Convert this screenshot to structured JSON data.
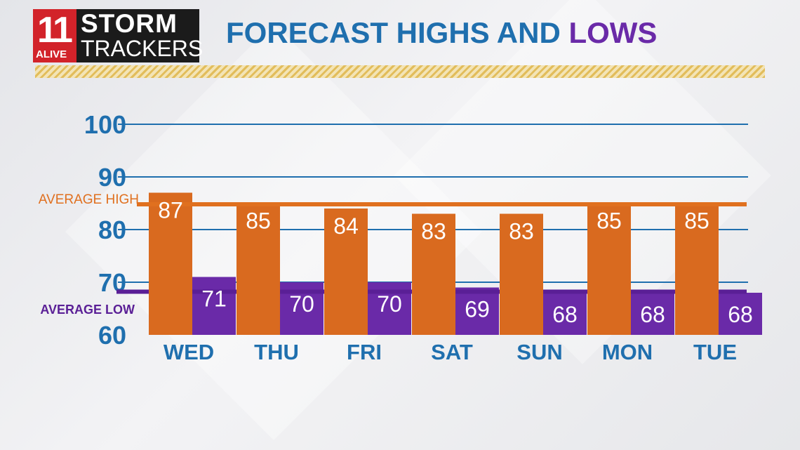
{
  "logo": {
    "number": "11",
    "station": "ALIVE",
    "line1": "STORM",
    "line2": "TRACKERS"
  },
  "title": {
    "part1": "FORECAST HIGHS AND",
    "part2": "LOWS"
  },
  "colors": {
    "high": "#d96a1f",
    "low": "#6a2aa8",
    "axis": "#1f6fae",
    "avg_high_line": "#e0701f",
    "avg_low_line": "#5a1f96"
  },
  "chart_data": {
    "type": "bar",
    "categories": [
      "WED",
      "THU",
      "FRI",
      "SAT",
      "SUN",
      "MON",
      "TUE"
    ],
    "series": [
      {
        "values": [
          87,
          85,
          84,
          83,
          83,
          85,
          85
        ]
      },
      {
        "values": [
          71,
          70,
          70,
          69,
          68,
          68,
          68
        ]
      }
    ],
    "yticks": [
      60,
      70,
      80,
      90,
      100
    ],
    "ylim": [
      60,
      100
    ],
    "grid": true,
    "average_high": {
      "label": "AVERAGE HIGH",
      "value": 84.8
    },
    "average_low": {
      "label": "AVERAGE LOW",
      "value": 68.2
    }
  }
}
